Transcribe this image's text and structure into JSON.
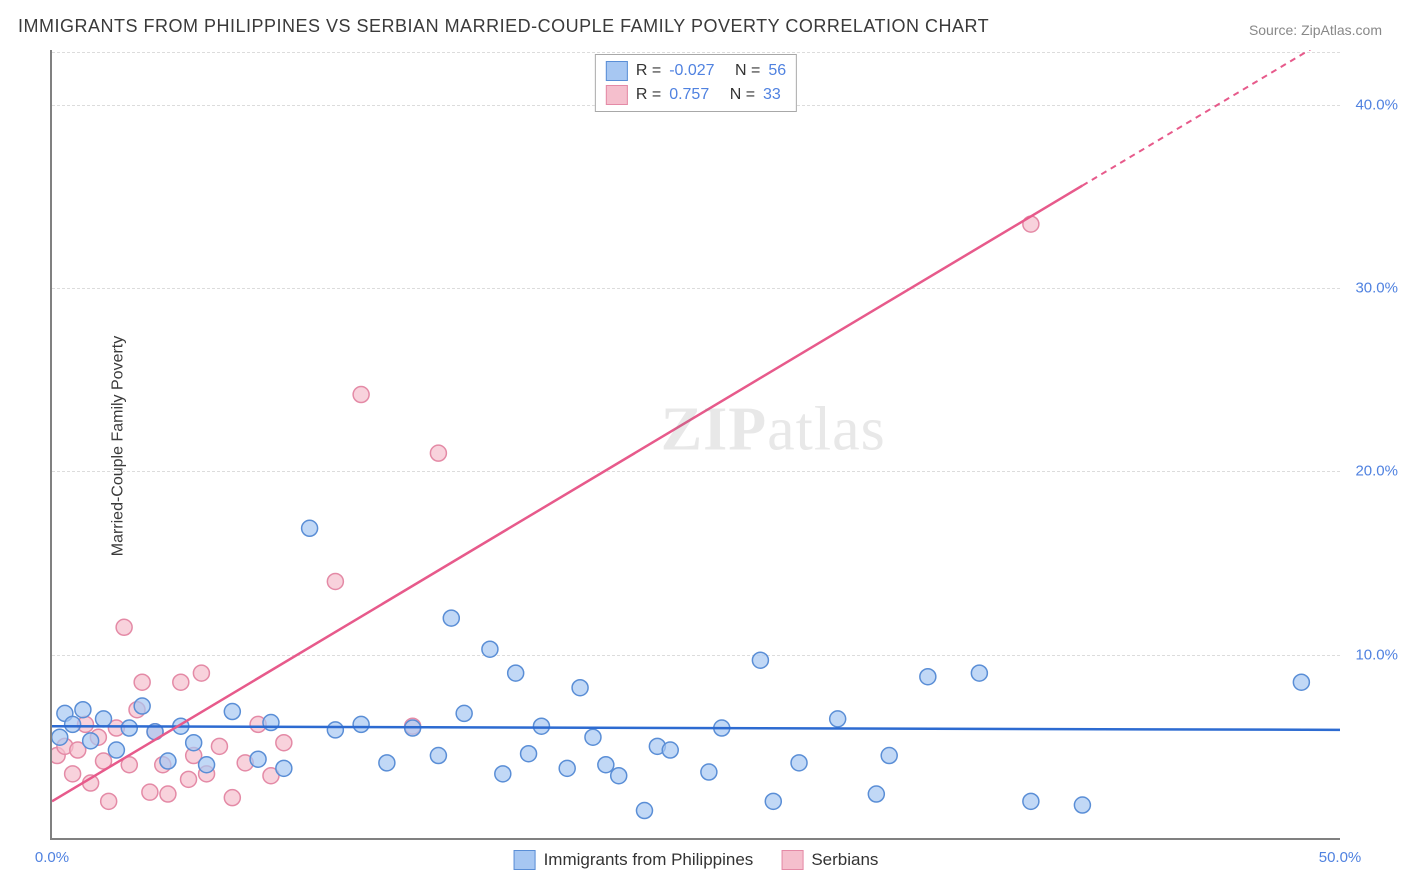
{
  "title": "IMMIGRANTS FROM PHILIPPINES VS SERBIAN MARRIED-COUPLE FAMILY POVERTY CORRELATION CHART",
  "source": "Source: ZipAtlas.com",
  "ylabel": "Married-Couple Family Poverty",
  "watermark_1": "ZIP",
  "watermark_2": "atlas",
  "chart": {
    "type": "scatter",
    "xlim": [
      0,
      50
    ],
    "ylim": [
      0,
      43
    ],
    "yticks": [
      10,
      20,
      30,
      40
    ],
    "ytick_labels": [
      "10.0%",
      "20.0%",
      "30.0%",
      "40.0%"
    ],
    "xticks": [
      0,
      50
    ],
    "xtick_labels": [
      "0.0%",
      "50.0%"
    ],
    "grid_color": "#dcdcdc",
    "axis_color": "#808080",
    "series_a": {
      "name": "Immigrants from Philippines",
      "r": -0.027,
      "n": 56,
      "fill": "#a7c7f2",
      "stroke": "#5a8ed6",
      "line_color": "#2d6bd1",
      "fit": {
        "x1": 0,
        "y1": 6.1,
        "x2": 50,
        "y2": 5.9
      },
      "marker_r": 8,
      "points": [
        [
          0.3,
          5.5
        ],
        [
          0.5,
          6.8
        ],
        [
          0.8,
          6.2
        ],
        [
          1.2,
          7.0
        ],
        [
          1.5,
          5.3
        ],
        [
          2.0,
          6.5
        ],
        [
          2.5,
          4.8
        ],
        [
          3.0,
          6.0
        ],
        [
          3.5,
          7.2
        ],
        [
          4.0,
          5.8
        ],
        [
          4.5,
          4.2
        ],
        [
          5.0,
          6.1
        ],
        [
          5.5,
          5.2
        ],
        [
          6.0,
          4.0
        ],
        [
          7.0,
          6.9
        ],
        [
          8.0,
          4.3
        ],
        [
          8.5,
          6.3
        ],
        [
          9.0,
          3.8
        ],
        [
          10.0,
          16.9
        ],
        [
          11.0,
          5.9
        ],
        [
          12.0,
          6.2
        ],
        [
          13.0,
          4.1
        ],
        [
          14.0,
          6.0
        ],
        [
          15.0,
          4.5
        ],
        [
          15.5,
          12.0
        ],
        [
          16.0,
          6.8
        ],
        [
          17.0,
          10.3
        ],
        [
          17.5,
          3.5
        ],
        [
          18.0,
          9.0
        ],
        [
          18.5,
          4.6
        ],
        [
          19.0,
          6.1
        ],
        [
          20.0,
          3.8
        ],
        [
          20.5,
          8.2
        ],
        [
          21.0,
          5.5
        ],
        [
          21.5,
          4.0
        ],
        [
          22.0,
          3.4
        ],
        [
          23.0,
          1.5
        ],
        [
          23.5,
          5.0
        ],
        [
          24.0,
          4.8
        ],
        [
          25.5,
          3.6
        ],
        [
          26.0,
          6.0
        ],
        [
          27.5,
          9.7
        ],
        [
          28.0,
          2.0
        ],
        [
          29.0,
          4.1
        ],
        [
          30.5,
          6.5
        ],
        [
          32.0,
          2.4
        ],
        [
          32.5,
          4.5
        ],
        [
          34.0,
          8.8
        ],
        [
          36.0,
          9.0
        ],
        [
          38.0,
          2.0
        ],
        [
          40.0,
          1.8
        ],
        [
          48.5,
          8.5
        ]
      ]
    },
    "series_b": {
      "name": "Serbians",
      "r": 0.757,
      "n": 33,
      "fill": "#f5bfcd",
      "stroke": "#e48aa6",
      "line_color": "#e75a8b",
      "fit": {
        "x1": 0,
        "y1": 2.0,
        "x2": 50,
        "y2": 44
      },
      "fit_solid_end_x": 40,
      "marker_r": 8,
      "points": [
        [
          0.2,
          4.5
        ],
        [
          0.5,
          5.0
        ],
        [
          0.8,
          3.5
        ],
        [
          1.0,
          4.8
        ],
        [
          1.3,
          6.2
        ],
        [
          1.5,
          3.0
        ],
        [
          1.8,
          5.5
        ],
        [
          2.0,
          4.2
        ],
        [
          2.2,
          2.0
        ],
        [
          2.5,
          6.0
        ],
        [
          2.8,
          11.5
        ],
        [
          3.0,
          4.0
        ],
        [
          3.3,
          7.0
        ],
        [
          3.5,
          8.5
        ],
        [
          3.8,
          2.5
        ],
        [
          4.0,
          5.8
        ],
        [
          4.3,
          4.0
        ],
        [
          4.5,
          2.4
        ],
        [
          5.0,
          8.5
        ],
        [
          5.3,
          3.2
        ],
        [
          5.5,
          4.5
        ],
        [
          5.8,
          9.0
        ],
        [
          6.0,
          3.5
        ],
        [
          6.5,
          5.0
        ],
        [
          7.0,
          2.2
        ],
        [
          7.5,
          4.1
        ],
        [
          8.0,
          6.2
        ],
        [
          8.5,
          3.4
        ],
        [
          9.0,
          5.2
        ],
        [
          11.0,
          14.0
        ],
        [
          12.0,
          24.2
        ],
        [
          14.0,
          6.1
        ],
        [
          15.0,
          21.0
        ],
        [
          38.0,
          33.5
        ]
      ]
    },
    "legend_top_r_label": "R =",
    "legend_top_n_label": "N ="
  }
}
